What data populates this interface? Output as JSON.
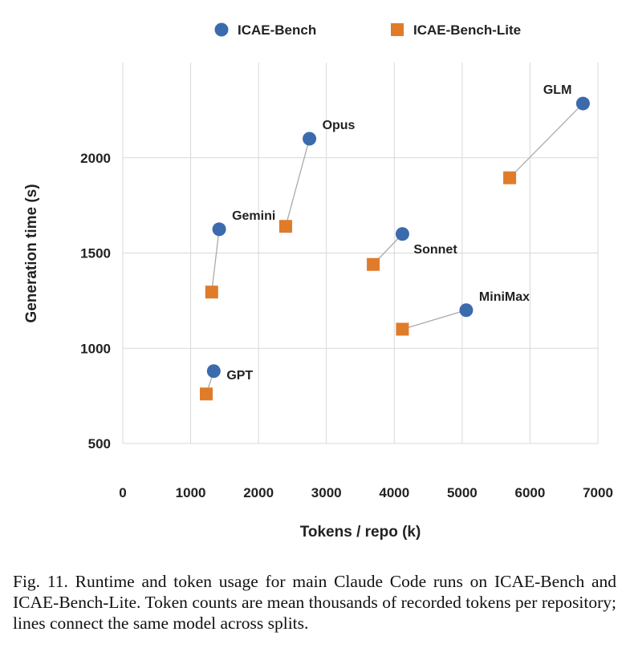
{
  "chart_data": {
    "type": "scatter",
    "xlabel": "Tokens / repo (k)",
    "ylabel": "Generation time (s)",
    "xlim": [
      0,
      7000
    ],
    "ylim": [
      500,
      2500
    ],
    "xticks": [
      0,
      1000,
      2000,
      3000,
      4000,
      5000,
      6000,
      7000
    ],
    "yticks": [
      500,
      1000,
      1500,
      2000
    ],
    "grid": true,
    "legend_position": "top",
    "series": [
      {
        "name": "ICAE-Bench",
        "marker": "circle",
        "color": "#3b6aad",
        "points": [
          {
            "label": "GPT",
            "x": 1340,
            "y": 880
          },
          {
            "label": "Gemini",
            "x": 1420,
            "y": 1625
          },
          {
            "label": "Opus",
            "x": 2750,
            "y": 2100
          },
          {
            "label": "Sonnet",
            "x": 4120,
            "y": 1600
          },
          {
            "label": "MiniMax",
            "x": 5060,
            "y": 1200
          },
          {
            "label": "GLM",
            "x": 6780,
            "y": 2285
          }
        ]
      },
      {
        "name": "ICAE-Bench-Lite",
        "marker": "square",
        "color": "#e07b2a",
        "points": [
          {
            "label": "GPT",
            "x": 1230,
            "y": 760
          },
          {
            "label": "Gemini",
            "x": 1310,
            "y": 1295
          },
          {
            "label": "Opus",
            "x": 2400,
            "y": 1640
          },
          {
            "label": "Sonnet",
            "x": 3690,
            "y": 1440
          },
          {
            "label": "MiniMax",
            "x": 4120,
            "y": 1100
          },
          {
            "label": "GLM",
            "x": 5700,
            "y": 1895
          }
        ]
      }
    ],
    "connector_color": "#aaaaaa"
  },
  "caption": "Fig. 11.  Runtime and token usage for main Claude Code runs on ICAE-Bench and ICAE-Bench-Lite. Token counts are mean thousands of recorded tokens per repository; lines connect the same model across splits."
}
